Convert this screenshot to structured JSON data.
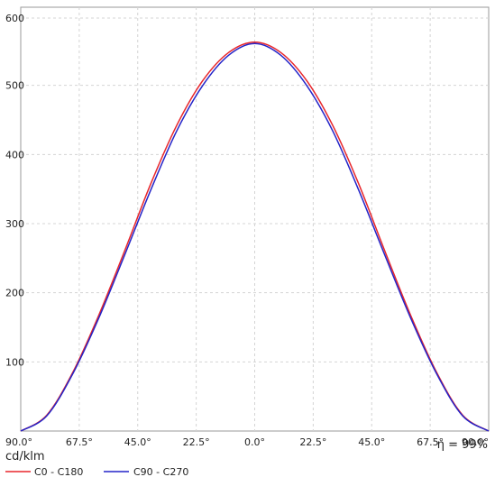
{
  "chart_data": {
    "type": "line",
    "unit_label": "cd/klm",
    "efficiency_label": "η = 99%",
    "x_ticks": [
      "90.0°",
      "67.5°",
      "45.0°",
      "22.5°",
      "0.0°",
      "22.5°",
      "45.0°",
      "67.5°",
      "90.0°"
    ],
    "y_ticks": [
      100,
      200,
      300,
      400,
      500,
      600
    ],
    "xlim": [
      -90,
      90
    ],
    "ylim": [
      0,
      600
    ],
    "grid": true,
    "legend_position": "bottom-left",
    "series": [
      {
        "name": "C0 - C180",
        "color": "#e8262b",
        "x": [
          -90,
          -80,
          -70,
          -60,
          -50,
          -40,
          -30,
          -20,
          -10,
          0,
          10,
          20,
          30,
          40,
          50,
          60,
          70,
          80,
          90
        ],
        "y": [
          0,
          23,
          85,
          168,
          262,
          359,
          444,
          509,
          550,
          565,
          550,
          509,
          444,
          359,
          262,
          168,
          85,
          23,
          0
        ]
      },
      {
        "name": "C90 - C270",
        "color": "#2424c8",
        "x": [
          -90,
          -80,
          -70,
          -60,
          -50,
          -40,
          -30,
          -20,
          -10,
          0,
          10,
          20,
          30,
          40,
          50,
          60,
          70,
          80,
          90
        ],
        "y": [
          0,
          22,
          83,
          164,
          256,
          350,
          436,
          502,
          546,
          563,
          546,
          502,
          436,
          350,
          256,
          164,
          83,
          22,
          0
        ]
      }
    ]
  }
}
